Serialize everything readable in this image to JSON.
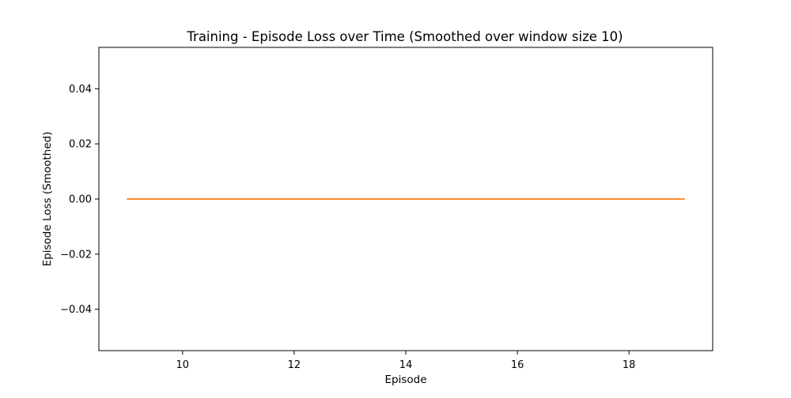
{
  "chart_data": {
    "type": "line",
    "title": "Training - Episode Loss over Time (Smoothed over window size 10)",
    "xlabel": "Episode",
    "ylabel": "Episode Loss (Smoothed)",
    "xlim": [
      8.5,
      19.5
    ],
    "ylim": [
      -0.055,
      0.055
    ],
    "x_ticks": [
      10,
      12,
      14,
      16,
      18
    ],
    "x_tick_labels": [
      "10",
      "12",
      "14",
      "16",
      "18"
    ],
    "y_ticks": [
      -0.04,
      -0.02,
      0.0,
      0.02,
      0.04
    ],
    "y_tick_labels": [
      "−0.04",
      "−0.02",
      "0.00",
      "0.02",
      "0.04"
    ],
    "grid": false,
    "series": [
      {
        "color": "#ff7f0e",
        "x": [
          9,
          10,
          11,
          12,
          13,
          14,
          15,
          16,
          17,
          18,
          19
        ],
        "y": [
          0,
          0,
          0,
          0,
          0,
          0,
          0,
          0,
          0,
          0,
          0
        ]
      }
    ]
  }
}
